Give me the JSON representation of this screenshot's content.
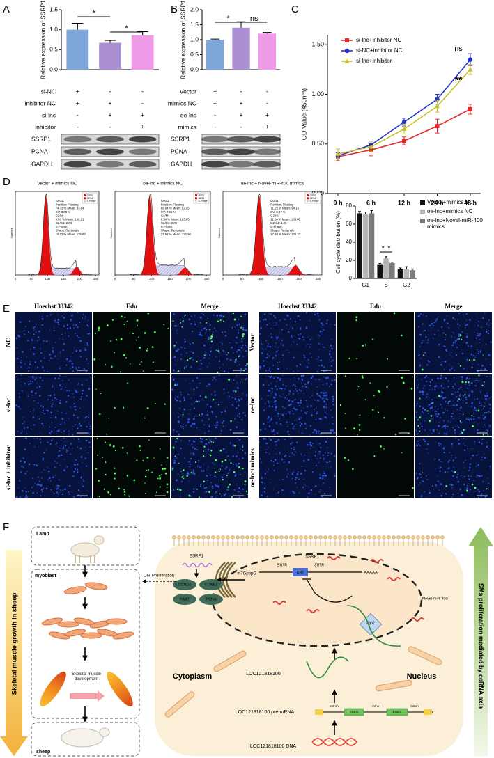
{
  "panel_labels": [
    "A",
    "B",
    "C",
    "D",
    "E",
    "F"
  ],
  "chart_data": [
    {
      "type": "bar",
      "ylabel": "Relative expression of SSRP1",
      "categories": [
        null,
        null,
        null
      ],
      "values": [
        1.0,
        0.67,
        0.86
      ],
      "errors": [
        0.16,
        0.06,
        0.09
      ],
      "colors": [
        "#7ea6d8",
        "#a98fd1",
        "#ee9ae8"
      ],
      "ylim": [
        0,
        1.5
      ],
      "yticks": [
        {
          "value": 0,
          "label": "0.0"
        },
        0.5,
        {
          "value": 1,
          "label": "1.0"
        },
        1.5
      ],
      "annotations": [
        "*",
        "*"
      ],
      "conditions": [
        {
          "label": "si-NC",
          "marks": [
            "+",
            "-",
            "-"
          ]
        },
        {
          "label": "inhibitor NC",
          "marks": [
            "+",
            "+",
            "-"
          ]
        },
        {
          "label": "si-lnc",
          "marks": [
            "-",
            "+",
            "+"
          ]
        },
        {
          "label": "inhibitor",
          "marks": [
            "-",
            "-",
            "+"
          ]
        }
      ],
      "blots": [
        "SSRP1",
        "PCNA",
        "GAPDH"
      ]
    },
    {
      "type": "bar",
      "ylabel": "Relative expression of SSRP1",
      "categories": [
        null,
        null,
        null
      ],
      "values": [
        1.0,
        1.4,
        1.2
      ],
      "errors": [
        0.02,
        0.2,
        0.04
      ],
      "colors": [
        "#7ea6d8",
        "#a98fd1",
        "#ee9ae8"
      ],
      "ylim": [
        0,
        2
      ],
      "yticks": [
        {
          "value": 0,
          "label": "0.0"
        },
        0.5,
        {
          "value": 1,
          "label": "1.0"
        },
        1.5,
        {
          "value": 2,
          "label": "2.0"
        }
      ],
      "annotations": [
        "*",
        "ns"
      ],
      "conditions": [
        {
          "label": "Vector",
          "marks": [
            "+",
            "-",
            "-"
          ]
        },
        {
          "label": "mimics NC",
          "marks": [
            "+",
            "+",
            "-"
          ]
        },
        {
          "label": "oe-lnc",
          "marks": [
            "-",
            "+",
            "+"
          ]
        },
        {
          "label": "mimics",
          "marks": [
            "-",
            "-",
            "+"
          ]
        }
      ],
      "blots": [
        "SSRP1",
        "PCNA",
        "GAPDH"
      ]
    },
    {
      "type": "line",
      "ylabel": "OD Value (450nm)",
      "categories": [
        "0 h",
        "6 h",
        "12 h",
        "24 h",
        "48 h"
      ],
      "ylim": [
        0,
        1.6
      ],
      "yticks": [
        {
          "value": 0,
          "label": "0.00"
        },
        {
          "value": 0.5,
          "label": "0.50"
        },
        {
          "value": 1,
          "label": "1.00"
        },
        {
          "value": 1.5,
          "label": "1.50"
        }
      ],
      "annotations": [
        "ns",
        "**"
      ],
      "series": [
        {
          "name": "si-lnc+inhibitor NC",
          "color": "#e8262a",
          "marker": "square",
          "values": [
            0.37,
            0.44,
            0.53,
            0.68,
            0.85
          ],
          "errors": [
            0.04,
            0.06,
            0.04,
            0.07,
            0.05
          ]
        },
        {
          "name": "si-NC+inhibitor NC",
          "color": "#2233cc",
          "marker": "circle",
          "values": [
            0.38,
            0.49,
            0.72,
            0.95,
            1.35
          ],
          "errors": [
            0.03,
            0.04,
            0.04,
            0.05,
            0.06
          ]
        },
        {
          "name": "si-lnc+inhibitor",
          "color": "#c8c020",
          "marker": "triangle",
          "values": [
            0.4,
            0.47,
            0.65,
            0.88,
            1.25
          ],
          "errors": [
            0.05,
            0.05,
            0.05,
            0.06,
            0.05
          ]
        }
      ]
    },
    {
      "type": "bar",
      "ylabel": "Cell cycle distribution (%)",
      "categories": [
        "G1",
        "S",
        "G2"
      ],
      "ylim": [
        0,
        80
      ],
      "yticks": [
        0,
        20,
        40,
        60,
        80
      ],
      "annotations": [
        "*",
        "*"
      ],
      "series": [
        {
          "name": "Vector+mimics NC",
          "color": "#111111",
          "values": [
            72,
            15,
            10
          ],
          "errors": [
            2,
            1.5,
            1.5
          ]
        },
        {
          "name": "oe-lnc+mimics NC",
          "color": "#b5b5b5",
          "values": [
            71,
            22,
            10
          ],
          "errors": [
            2.5,
            2,
            3
          ]
        },
        {
          "name": "oe-lnc+Novel-miR-400 mimics",
          "color": "#7a7a7a",
          "values": [
            72,
            17,
            9
          ],
          "errors": [
            3,
            1,
            1.5
          ]
        }
      ]
    }
  ],
  "flow_cytometry": {
    "ylabel": "Number",
    "xlim": [
      0,
      260
    ],
    "xticks": [
      0,
      50,
      100,
      150,
      200,
      250
    ],
    "legend": [
      "G0G1",
      "G2/M",
      "S-Phase"
    ],
    "panels": [
      {
        "title": "Vector + mimics NC",
        "stats": [
          "G0G1:",
          "Position: Floating",
          "74.73 %  Mean: 93.84",
          "CV: 8.03 %",
          "G2/M:",
          "9.53 %  Mean: 186.21",
          "G2/G1: 2.03",
          "S-Phase:",
          "Shape: Rectangle",
          "15.73 %  Mean: 135.82"
        ]
      },
      {
        "title": "oe-lnc + mimics NC",
        "stats": [
          "G0G1:",
          "Position: Floating",
          "69.04 %  Mean: 92.95",
          "CV: 7.56 %",
          "G2/M:",
          "8.34 %  Mean: 183.85",
          "G2/G1: 2.09",
          "S-Phase:",
          "Shape: Rectangle",
          "22.62 %  Mean: 122.90"
        ]
      },
      {
        "title": "oe-lnc + Novel-miR-400 mimics",
        "stats": [
          "G0G1:",
          "Position: Floating",
          "71.22 %  Mean: 94.16",
          "CV: 8.07 %",
          "G2/M:",
          "11.10 %  Mean: 186.86",
          "G2/G1: 1.99",
          "S-Phase:",
          "Shape: Rectangle",
          "17.68 %  Mean: 131.27"
        ]
      }
    ]
  },
  "microscopy": {
    "column_headers": [
      "Hoechst 33342",
      "Edu",
      "Merge"
    ],
    "left_rows": [
      "NC",
      "si-lnc",
      "si-lnc + inhibitor"
    ],
    "right_rows": [
      "Vector",
      "oe-lnc",
      "oe-lnc+mimics"
    ]
  },
  "diagram": {
    "left_axis": "Skeletal muscle growth in sheep",
    "right_axis": "SMs proliferation mediated by ceRNA axis",
    "lamb": "Lamb",
    "myoblast": "myoblast",
    "sheep": "sheep",
    "development": "Skeletal muscle development",
    "cell_proliferation": "Cell Proliferation",
    "protein": "SSRP1",
    "targets": [
      "CCND1",
      "CCNE1",
      "PAX7",
      "PCNA"
    ],
    "cytoplasm": "Cytoplasm",
    "nucleus": "Nucleus",
    "mrna": {
      "gene": "SSRP1",
      "cap": "m7GpppG",
      "utr5": "5'UTR",
      "orf": "ORF",
      "utr3": "3'UTR",
      "tail": "AAAAA"
    },
    "mirna": "Novel-miR-400",
    "ago2": "Ago2",
    "lncrna": "LOC121818100",
    "pre_mrna": "LOC121818100 pre-mRNA",
    "dna": "LOC121818100 DNA",
    "gene_parts": [
      "Intron",
      "Exon2",
      "Intron",
      "Exon1",
      "Intron"
    ]
  }
}
